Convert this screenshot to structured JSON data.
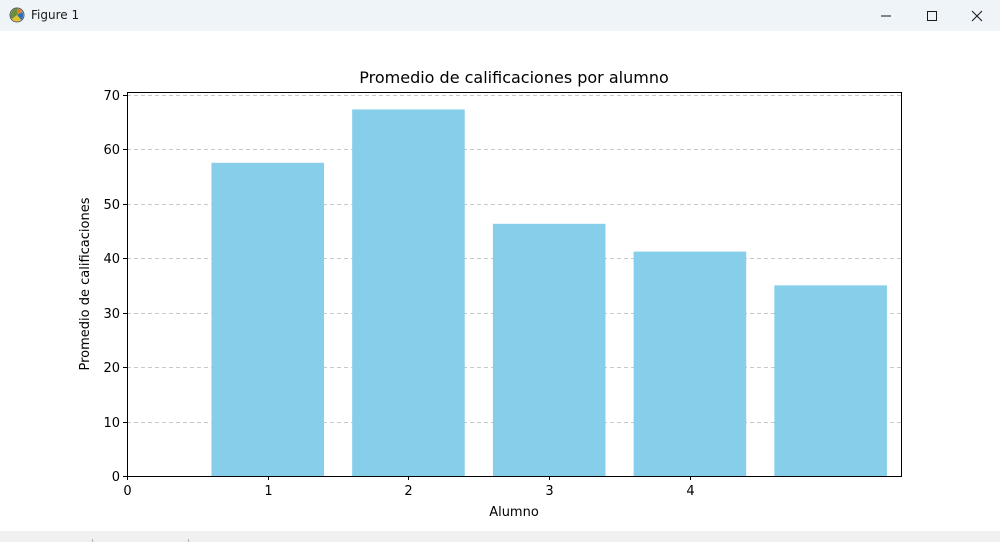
{
  "window": {
    "title": "Figure 1",
    "icons": {
      "app": "matplotlib-icon",
      "minimize": "minimize-icon",
      "maximize": "maximize-icon",
      "close": "close-icon"
    }
  },
  "chart_data": {
    "type": "bar",
    "title": "Promedio de calificaciones por alumno",
    "xlabel": "Alumno",
    "ylabel": "Promedio de calificaciones",
    "x": [
      1,
      2,
      3,
      4,
      5
    ],
    "values": [
      57.5,
      67.3,
      46.3,
      41.2,
      35.0
    ],
    "xlim": [
      0,
      5.5
    ],
    "ylim": [
      0,
      70.5
    ],
    "xticks": [
      0,
      1,
      2,
      3,
      4
    ],
    "yticks": [
      0,
      10,
      20,
      30,
      40,
      50,
      60,
      70
    ],
    "bar_width": 0.8,
    "bar_color": "#87ceeb",
    "grid": {
      "axis": "y",
      "style": "dashed",
      "color": "#c8c8c8"
    },
    "legend": "none"
  }
}
